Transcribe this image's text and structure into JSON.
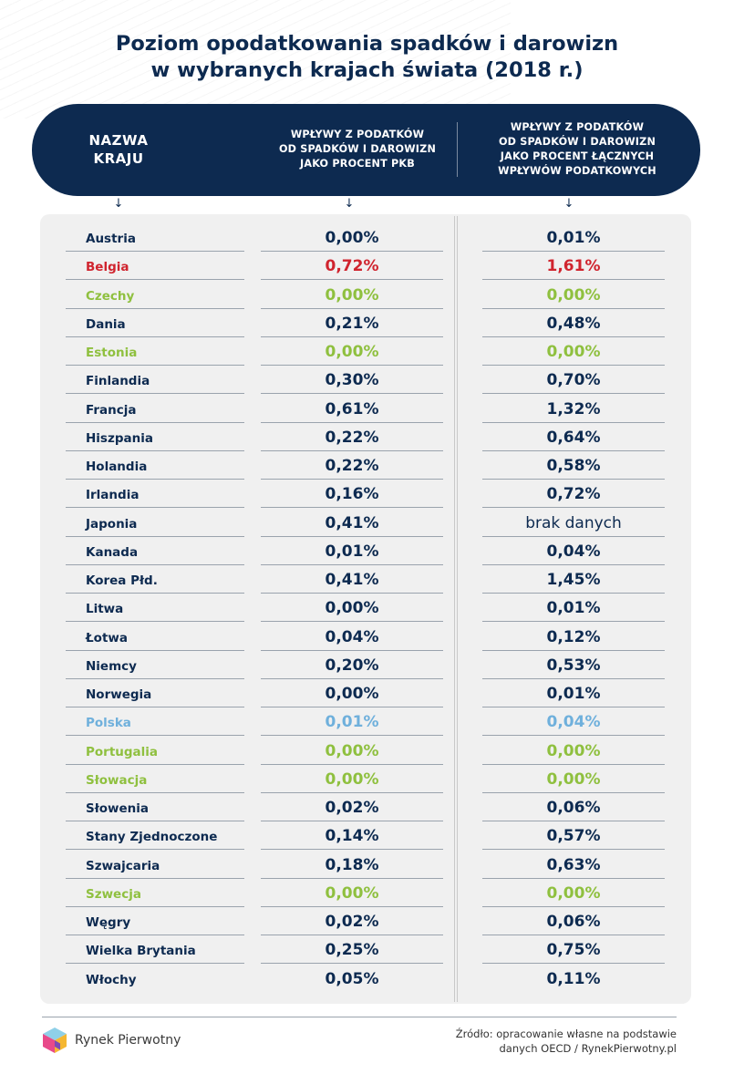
{
  "title": {
    "line1": "Poziom opodatkowania spadków i darowizn",
    "line2": "w wybranych krajach świata (2018 r.)"
  },
  "header": {
    "col_name": [
      "NAZWA",
      "KRAJU"
    ],
    "col_pkb": [
      "WPŁYWY Z PODATKÓW",
      "OD SPADKÓW I DAROWIZN",
      "JAKO PROCENT PKB"
    ],
    "col_tax": [
      "WPŁYWY Z PODATKÓW",
      "OD SPADKÓW I DAROWIZN",
      "JAKO PROCENT ŁĄCZNYCH",
      "WPŁYWÓW PODATKOWYCH"
    ],
    "arrow": "↓"
  },
  "colors": {
    "default": "#0d2a50",
    "red": "#d0242e",
    "green": "#8fc03f",
    "blue": "#6fb0dc"
  },
  "chart_data": {
    "type": "table",
    "title": "Poziom opodatkowania spadków i darowizn w wybranych krajach świata (2018 r.)",
    "columns": [
      "NAZWA KRAJU",
      "WPŁYWY Z PODATKÓW OD SPADKÓW I DAROWIZN JAKO PROCENT PKB",
      "WPŁYWY Z PODATKÓW OD SPADKÓW I DAROWIZN JAKO PROCENT ŁĄCZNYCH WPŁYWÓW PODATKOWYCH"
    ],
    "rows": [
      {
        "name": "Austria",
        "pkb": "0,00%",
        "tax": "0,01%",
        "color": "default"
      },
      {
        "name": "Belgia",
        "pkb": "0,72%",
        "tax": "1,61%",
        "color": "red"
      },
      {
        "name": "Czechy",
        "pkb": "0,00%",
        "tax": "0,00%",
        "color": "green"
      },
      {
        "name": "Dania",
        "pkb": "0,21%",
        "tax": "0,48%",
        "color": "default"
      },
      {
        "name": "Estonia",
        "pkb": "0,00%",
        "tax": "0,00%",
        "color": "green"
      },
      {
        "name": "Finlandia",
        "pkb": "0,30%",
        "tax": "0,70%",
        "color": "default"
      },
      {
        "name": "Francja",
        "pkb": "0,61%",
        "tax": "1,32%",
        "color": "default"
      },
      {
        "name": "Hiszpania",
        "pkb": "0,22%",
        "tax": "0,64%",
        "color": "default"
      },
      {
        "name": "Holandia",
        "pkb": "0,22%",
        "tax": "0,58%",
        "color": "default"
      },
      {
        "name": "Irlandia",
        "pkb": "0,16%",
        "tax": "0,72%",
        "color": "default"
      },
      {
        "name": "Japonia",
        "pkb": "0,41%",
        "tax": "brak danych",
        "color": "default"
      },
      {
        "name": "Kanada",
        "pkb": "0,01%",
        "tax": "0,04%",
        "color": "default"
      },
      {
        "name": "Korea Płd.",
        "pkb": "0,41%",
        "tax": "1,45%",
        "color": "default"
      },
      {
        "name": "Litwa",
        "pkb": "0,00%",
        "tax": "0,01%",
        "color": "default"
      },
      {
        "name": "Łotwa",
        "pkb": "0,04%",
        "tax": "0,12%",
        "color": "default"
      },
      {
        "name": "Niemcy",
        "pkb": "0,20%",
        "tax": "0,53%",
        "color": "default"
      },
      {
        "name": "Norwegia",
        "pkb": "0,00%",
        "tax": "0,01%",
        "color": "default"
      },
      {
        "name": "Polska",
        "pkb": "0,01%",
        "tax": "0,04%",
        "color": "blue"
      },
      {
        "name": "Portugalia",
        "pkb": "0,00%",
        "tax": "0,00%",
        "color": "green"
      },
      {
        "name": "Słowacja",
        "pkb": "0,00%",
        "tax": "0,00%",
        "color": "green"
      },
      {
        "name": "Słowenia",
        "pkb": "0,02%",
        "tax": "0,06%",
        "color": "default"
      },
      {
        "name": "Stany Zjednoczone",
        "pkb": "0,14%",
        "tax": "0,57%",
        "color": "default"
      },
      {
        "name": "Szwajcaria",
        "pkb": "0,18%",
        "tax": "0,63%",
        "color": "default"
      },
      {
        "name": "Szwecja",
        "pkb": "0,00%",
        "tax": "0,00%",
        "color": "green"
      },
      {
        "name": "Węgry",
        "pkb": "0,02%",
        "tax": "0,06%",
        "color": "default"
      },
      {
        "name": "Wielka Brytania",
        "pkb": "0,25%",
        "tax": "0,75%",
        "color": "default"
      },
      {
        "name": "Włochy",
        "pkb": "0,05%",
        "tax": "0,11%",
        "color": "default"
      }
    ]
  },
  "footer": {
    "brand": "Rynek Pierwotny",
    "source_line1": "Źródło: opracowanie własne na podstawie",
    "source_line2": "danych OECD / RynekPierwotny.pl"
  }
}
